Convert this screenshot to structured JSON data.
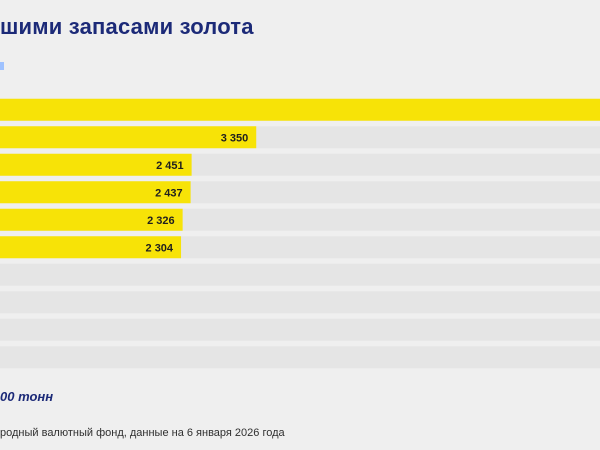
{
  "header": {
    "title": "шими запасами золота"
  },
  "footer": {
    "note": "00 тонн",
    "source": "родный валютный фонд, данные на 6 января 2026 года"
  },
  "colors": {
    "bar": "#f7e307",
    "track": "#e5e5e5",
    "title": "#1c2a78",
    "background": "#efefef"
  },
  "chart_data": {
    "type": "bar",
    "orientation": "horizontal",
    "categories": [
      "",
      "",
      "",
      "",
      "",
      "",
      "",
      "",
      "",
      ""
    ],
    "values": [
      8133,
      3350,
      2451,
      2437,
      2326,
      2304,
      null,
      null,
      null,
      null
    ],
    "data_labels": [
      "",
      "3 350",
      "2 451",
      "2 437",
      "2 326",
      "2 304",
      "",
      "",
      "",
      ""
    ],
    "xlim": [
      -215,
      8133
    ],
    "grid": false,
    "legend": "none"
  }
}
